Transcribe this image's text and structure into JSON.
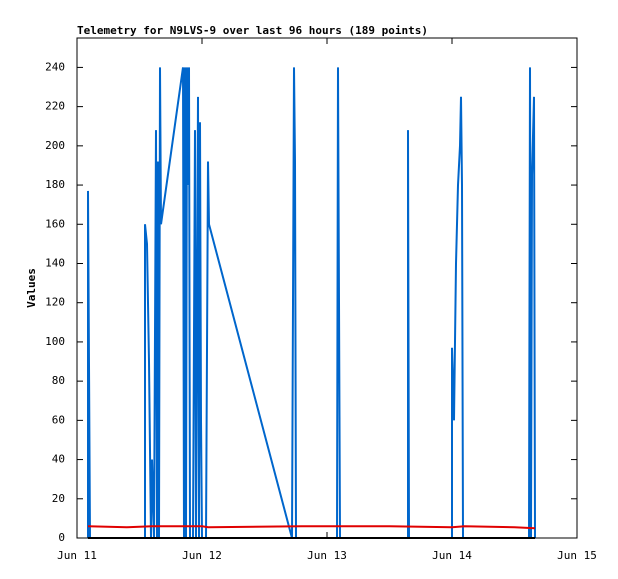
{
  "chart_data": {
    "type": "line",
    "title": "Telemetry for N9LVS-9 over last 96 hours (189 points)",
    "y_label": "Values",
    "xlim": [
      11,
      15
    ],
    "xticks": [
      {
        "value": 11,
        "label": "Jun 11"
      },
      {
        "value": 12,
        "label": "Jun 12"
      },
      {
        "value": 13,
        "label": "Jun 13"
      },
      {
        "value": 14,
        "label": "Jun 14"
      },
      {
        "value": 15,
        "label": "Jun 15"
      }
    ],
    "ylim": [
      0,
      255
    ],
    "yticks": [
      0,
      20,
      40,
      60,
      80,
      100,
      120,
      140,
      160,
      180,
      200,
      220,
      240
    ],
    "series": [
      {
        "color": "#0066cc",
        "x": [
          11.088,
          11.088,
          11.096,
          11.104,
          11.544,
          11.544,
          11.56,
          11.576,
          11.592,
          11.6,
          11.616,
          11.632,
          11.64,
          11.648,
          11.656,
          11.664,
          11.672,
          11.848,
          11.856,
          11.864,
          11.872,
          11.88,
          11.888,
          11.896,
          11.904,
          11.928,
          11.944,
          11.952,
          11.968,
          11.976,
          11.984,
          11.992,
          12.0,
          12.032,
          12.048,
          12.056,
          12.72,
          12.736,
          12.744,
          12.752,
          13.08,
          13.088,
          13.096,
          13.104,
          13.648,
          13.648,
          13.656,
          14.0,
          14.0,
          14.016,
          14.032,
          14.048,
          14.064,
          14.072,
          14.08,
          14.088,
          14.616,
          14.624,
          14.632,
          14.64,
          14.656,
          14.664
        ],
        "values": [
          0,
          177,
          88,
          0,
          0,
          160,
          150,
          90,
          0,
          40,
          0,
          208,
          0,
          192,
          0,
          240,
          160,
          240,
          0,
          240,
          0,
          240,
          180,
          240,
          0,
          0,
          208,
          0,
          225,
          0,
          212,
          60,
          0,
          0,
          192,
          160,
          0,
          240,
          192,
          0,
          0,
          240,
          120,
          0,
          0,
          208,
          0,
          0,
          97,
          60,
          140,
          180,
          200,
          225,
          180,
          0,
          0,
          240,
          0,
          185,
          225,
          0
        ]
      },
      {
        "color": "#e00000",
        "x": [
          11.088,
          11.4,
          11.6,
          12.0,
          12.05,
          12.8,
          13.5,
          14.0,
          14.1,
          14.5,
          14.664
        ],
        "values": [
          6,
          5.5,
          6,
          6,
          5.5,
          6,
          6,
          5.5,
          6,
          5.5,
          5
        ]
      },
      {
        "color": "#000000",
        "x": [
          11.088,
          14.664
        ],
        "values": [
          0,
          0
        ]
      }
    ]
  }
}
